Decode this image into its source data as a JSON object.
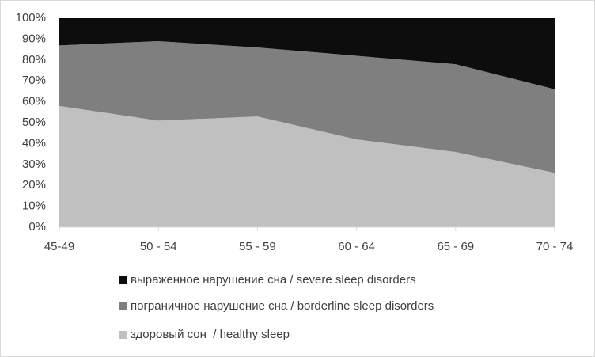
{
  "chart_data": {
    "type": "stacked_area",
    "categories": [
      "45-49",
      "50 - 54",
      "55 - 59",
      "60 - 64",
      "65 - 69",
      "70 - 74"
    ],
    "series": [
      {
        "name": "здоровый сон  / healthy sleep",
        "color": "#c0c0c0",
        "values": [
          58,
          51,
          53,
          42,
          36,
          26
        ]
      },
      {
        "name": "пограничное нарушение сна / borderline sleep disorders",
        "color": "#7f7f7f",
        "values": [
          29,
          38,
          33,
          40,
          42,
          40
        ]
      },
      {
        "name": "выраженное нарушение сна / severe sleep disorders",
        "color": "#0d0d0d",
        "values": [
          13,
          11,
          14,
          18,
          22,
          34
        ]
      }
    ],
    "ylim": [
      0,
      100
    ],
    "yticks": [
      {
        "value": 0,
        "label": "0%"
      },
      {
        "value": 10,
        "label": "10%"
      },
      {
        "value": 20,
        "label": "20%"
      },
      {
        "value": 30,
        "label": "30%"
      },
      {
        "value": 40,
        "label": "40%"
      },
      {
        "value": 50,
        "label": "50%"
      },
      {
        "value": 60,
        "label": "60%"
      },
      {
        "value": 70,
        "label": "70%"
      },
      {
        "value": 80,
        "label": "80%"
      },
      {
        "value": 90,
        "label": "90%"
      },
      {
        "value": 100,
        "label": "100%"
      }
    ]
  }
}
